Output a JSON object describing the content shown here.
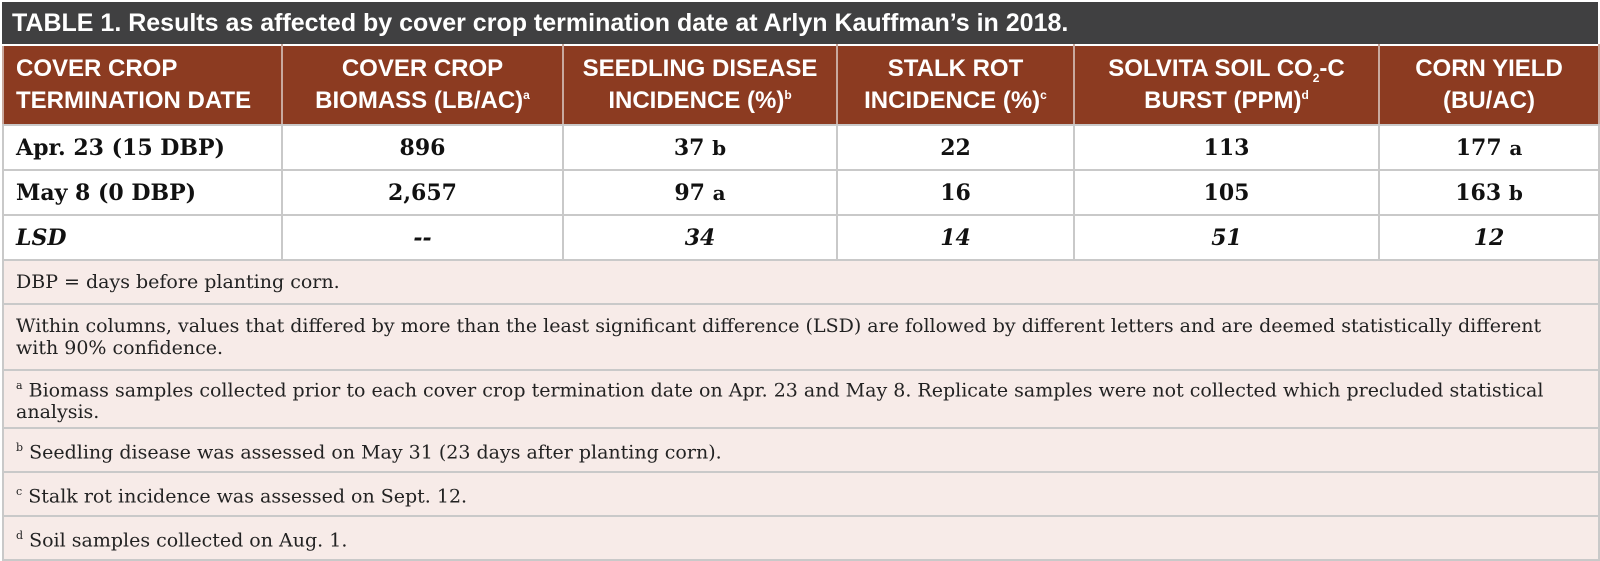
{
  "title": {
    "lead": "TABLE 1.",
    "text": "Results as affected by cover crop termination date at Arlyn Kauffman’s in 2018."
  },
  "headers": [
    {
      "line1": "COVER CROP",
      "line2": "TERMINATION DATE"
    },
    {
      "line1": "COVER CROP",
      "line2": "BIOMASS (LB/AC)",
      "sup": "a"
    },
    {
      "line1": "SEEDLING DISEASE",
      "line2": "INCIDENCE (%)",
      "sup": "b"
    },
    {
      "line1": "STALK ROT",
      "line2": "INCIDENCE (%)",
      "sup": "c"
    },
    {
      "line1a": "SOLVITA SOIL CO",
      "sub": "2",
      "line1b": "-C",
      "line2": "BURST (PPM)",
      "sup": "d"
    },
    {
      "line1": "CORN YIELD",
      "line2": "(BU/AC)"
    }
  ],
  "rows": [
    {
      "date": "Apr. 23 (15 DBP)",
      "biomass": "896",
      "seedling": "37",
      "seedling_letter": "b",
      "stalk": "22",
      "solvita": "113",
      "yield": "177",
      "yield_letter": "a"
    },
    {
      "date": "May 8 (0 DBP)",
      "biomass": "2,657",
      "seedling": "97",
      "seedling_letter": "a",
      "stalk": "16",
      "solvita": "105",
      "yield": "163",
      "yield_letter": "b"
    }
  ],
  "lsd": {
    "label": "LSD",
    "biomass": "--",
    "seedling": "34",
    "stalk": "14",
    "solvita": "51",
    "yield": "12"
  },
  "notes": [
    {
      "sup": "",
      "text": "DBP = days before planting corn."
    },
    {
      "sup": "",
      "text": "Within columns, values that differed by more than the least significant difference (LSD) are followed by different letters and are deemed statistically different with 90% confidence."
    },
    {
      "sup": "a",
      "text": "Biomass samples collected prior to each cover crop termination date on Apr. 23 and May 8. Replicate samples were not collected which precluded statistical analysis."
    },
    {
      "sup": "b",
      "text": "Seedling disease was assessed on May 31 (23 days after planting corn)."
    },
    {
      "sup": "c",
      "text": "Stalk rot incidence was assessed on Sept. 12."
    },
    {
      "sup": "d",
      "text": "Soil samples collected on Aug. 1."
    }
  ]
}
